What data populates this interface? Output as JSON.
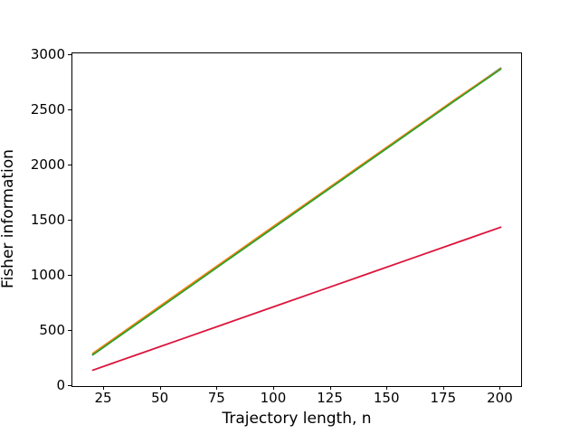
{
  "chart_data": {
    "type": "line",
    "title": "",
    "xlabel": "Trajectory length, n",
    "ylabel": "Fisher information",
    "x": [
      20,
      40,
      60,
      80,
      100,
      120,
      140,
      160,
      180,
      200
    ],
    "series": [
      {
        "name": "blue-line",
        "color": "#1f77b4",
        "values": [
          288,
          578,
          868,
          1155,
          1442,
          1730,
          2018,
          2308,
          2595,
          2882
        ]
      },
      {
        "name": "orange-line",
        "color": "#ff7f0e",
        "values": [
          296,
          585,
          875,
          1163,
          1452,
          1738,
          2025,
          2312,
          2600,
          2878
        ]
      },
      {
        "name": "green-line",
        "color": "#2ca02c",
        "values": [
          283,
          572,
          860,
          1150,
          1438,
          1726,
          2014,
          2302,
          2590,
          2872
        ]
      },
      {
        "name": "crimson-line",
        "color": "#dc143c",
        "values": [
          144,
          288,
          432,
          576,
          720,
          864,
          1008,
          1152,
          1296,
          1440
        ]
      }
    ],
    "xticks": [
      25,
      50,
      75,
      100,
      125,
      150,
      175,
      200
    ],
    "yticks": [
      0,
      500,
      1000,
      1500,
      2000,
      2500,
      3000
    ],
    "xlim": [
      11,
      209
    ],
    "ylim": [
      0,
      3016
    ],
    "grid": false,
    "legend": "none",
    "line_width": 1.8,
    "background": "#ffffff",
    "frame_color": "#000000"
  }
}
